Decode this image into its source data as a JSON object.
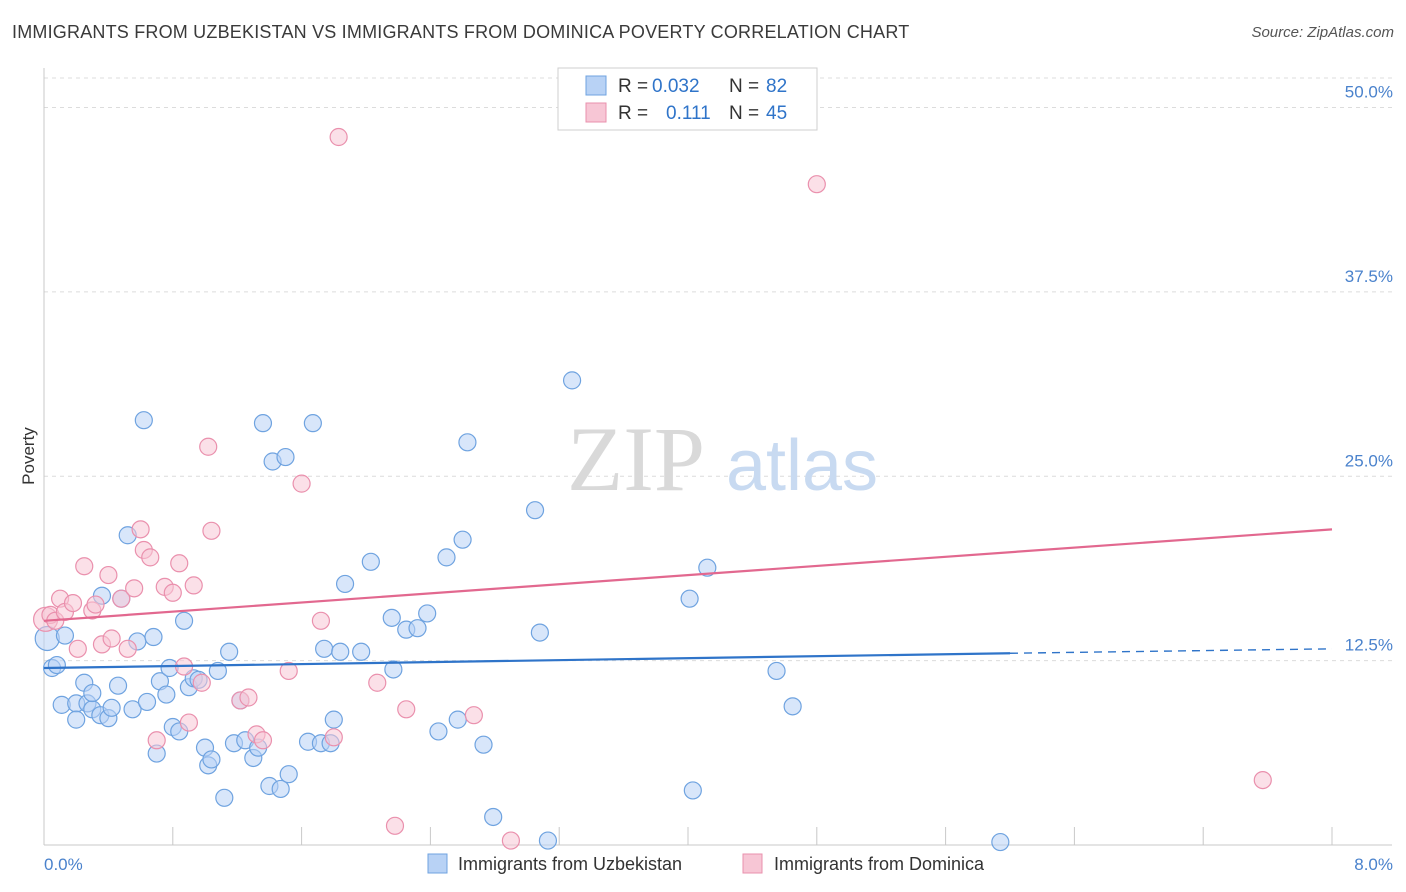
{
  "header": {
    "title": "IMMIGRANTS FROM UZBEKISTAN VS IMMIGRANTS FROM DOMINICA POVERTY CORRELATION CHART",
    "source": "Source: ZipAtlas.com"
  },
  "watermark": {
    "part1": "ZIP",
    "part2": "atlas"
  },
  "colors": {
    "blue": "#6fa3e0",
    "blue_fill": "#b8d2f5",
    "blue_line": "#2f74c9",
    "pink": "#ea90ad",
    "pink_fill": "#f7c6d5",
    "pink_line": "#e2688f",
    "tick_label": "#4a82cc",
    "grid": "#dcdcdc"
  },
  "legend": {
    "rows": [
      {
        "r_label": "R =",
        "r_value": "0.032",
        "n_label": "N =",
        "n_value": "82"
      },
      {
        "r_label": "R =",
        "r_value": "0.111",
        "n_label": "N =",
        "n_value": "45"
      }
    ]
  },
  "chart_data": {
    "type": "scatter",
    "title": "IMMIGRANTS FROM UZBEKISTAN VS IMMIGRANTS FROM DOMINICA POVERTY CORRELATION CHART",
    "xlabel": "",
    "ylabel": "Poverty",
    "xlim": [
      0,
      8
    ],
    "ylim": [
      0,
      52
    ],
    "x_tick_labels": [
      "0.0%",
      "8.0%"
    ],
    "y_tick_values": [
      12.5,
      25.0,
      37.5,
      50.0
    ],
    "y_tick_labels": [
      "12.5%",
      "25.0%",
      "37.5%",
      "50.0%"
    ],
    "grid": true,
    "legend_position": "top-center",
    "series": [
      {
        "name": "Immigrants from Uzbekistan",
        "color": "blue",
        "R": 0.032,
        "N": 82,
        "trend": {
          "x": [
            0.0,
            6.0
          ],
          "y": [
            12.0,
            13.0
          ],
          "dashed_to": [
            8.0,
            13.3
          ]
        },
        "points": [
          [
            0.02,
            14.0
          ],
          [
            0.05,
            12.0
          ],
          [
            0.08,
            12.2
          ],
          [
            0.13,
            14.2
          ],
          [
            0.11,
            9.5
          ],
          [
            0.2,
            9.6
          ],
          [
            0.2,
            8.5
          ],
          [
            0.25,
            11.0
          ],
          [
            0.27,
            9.6
          ],
          [
            0.3,
            9.2
          ],
          [
            0.3,
            10.3
          ],
          [
            0.35,
            8.8
          ],
          [
            0.36,
            16.9
          ],
          [
            0.4,
            8.6
          ],
          [
            0.42,
            9.3
          ],
          [
            0.46,
            10.8
          ],
          [
            0.48,
            16.7
          ],
          [
            0.52,
            21.0
          ],
          [
            0.55,
            9.2
          ],
          [
            0.58,
            13.8
          ],
          [
            0.62,
            28.8
          ],
          [
            0.64,
            9.7
          ],
          [
            0.68,
            14.1
          ],
          [
            0.7,
            6.2
          ],
          [
            0.72,
            11.1
          ],
          [
            0.76,
            10.2
          ],
          [
            0.78,
            12.0
          ],
          [
            0.8,
            8.0
          ],
          [
            0.84,
            7.7
          ],
          [
            0.87,
            15.2
          ],
          [
            0.9,
            10.7
          ],
          [
            0.93,
            11.3
          ],
          [
            0.96,
            11.2
          ],
          [
            1.0,
            6.6
          ],
          [
            1.02,
            5.4
          ],
          [
            1.04,
            5.8
          ],
          [
            1.08,
            11.8
          ],
          [
            1.12,
            3.2
          ],
          [
            1.15,
            13.1
          ],
          [
            1.18,
            6.9
          ],
          [
            1.22,
            9.8
          ],
          [
            1.25,
            7.1
          ],
          [
            1.3,
            5.9
          ],
          [
            1.33,
            6.6
          ],
          [
            1.36,
            28.6
          ],
          [
            1.4,
            4.0
          ],
          [
            1.42,
            26.0
          ],
          [
            1.47,
            3.8
          ],
          [
            1.5,
            26.3
          ],
          [
            1.52,
            4.8
          ],
          [
            1.64,
            7.0
          ],
          [
            1.67,
            28.6
          ],
          [
            1.72,
            6.9
          ],
          [
            1.74,
            13.3
          ],
          [
            1.78,
            6.9
          ],
          [
            1.8,
            8.5
          ],
          [
            1.84,
            13.1
          ],
          [
            1.87,
            17.7
          ],
          [
            1.97,
            13.1
          ],
          [
            2.03,
            19.2
          ],
          [
            2.16,
            15.4
          ],
          [
            2.17,
            11.9
          ],
          [
            2.25,
            14.6
          ],
          [
            2.32,
            14.7
          ],
          [
            2.38,
            15.7
          ],
          [
            2.45,
            7.7
          ],
          [
            2.5,
            19.5
          ],
          [
            2.57,
            8.5
          ],
          [
            2.6,
            20.7
          ],
          [
            2.63,
            27.3
          ],
          [
            2.73,
            6.8
          ],
          [
            2.79,
            1.9
          ],
          [
            3.05,
            22.7
          ],
          [
            3.08,
            14.4
          ],
          [
            3.13,
            0.3
          ],
          [
            3.28,
            31.5
          ],
          [
            4.01,
            16.7
          ],
          [
            4.03,
            3.7
          ],
          [
            4.12,
            18.8
          ],
          [
            4.55,
            11.8
          ],
          [
            4.65,
            9.4
          ],
          [
            5.94,
            0.2
          ]
        ]
      },
      {
        "name": "Immigrants from Dominica",
        "color": "pink",
        "R": 0.111,
        "N": 45,
        "trend": {
          "x": [
            0.0,
            8.0
          ],
          "y": [
            15.2,
            21.4
          ]
        },
        "points": [
          [
            0.01,
            15.3
          ],
          [
            0.04,
            15.6
          ],
          [
            0.07,
            15.2
          ],
          [
            0.1,
            16.7
          ],
          [
            0.13,
            15.8
          ],
          [
            0.18,
            16.4
          ],
          [
            0.21,
            13.3
          ],
          [
            0.25,
            18.9
          ],
          [
            0.3,
            15.9
          ],
          [
            0.32,
            16.3
          ],
          [
            0.36,
            13.6
          ],
          [
            0.4,
            18.3
          ],
          [
            0.42,
            14.0
          ],
          [
            0.48,
            16.7
          ],
          [
            0.52,
            13.3
          ],
          [
            0.56,
            17.4
          ],
          [
            0.6,
            21.4
          ],
          [
            0.62,
            20.0
          ],
          [
            0.66,
            19.5
          ],
          [
            0.7,
            7.1
          ],
          [
            0.75,
            17.5
          ],
          [
            0.8,
            17.1
          ],
          [
            0.84,
            19.1
          ],
          [
            0.87,
            12.1
          ],
          [
            0.9,
            8.3
          ],
          [
            0.93,
            17.6
          ],
          [
            0.98,
            11.0
          ],
          [
            1.02,
            27.0
          ],
          [
            1.04,
            21.3
          ],
          [
            1.22,
            9.8
          ],
          [
            1.27,
            10.0
          ],
          [
            1.32,
            7.5
          ],
          [
            1.36,
            7.1
          ],
          [
            1.52,
            11.8
          ],
          [
            1.6,
            24.5
          ],
          [
            1.72,
            15.2
          ],
          [
            1.8,
            7.3
          ],
          [
            1.83,
            48.0
          ],
          [
            2.07,
            11.0
          ],
          [
            2.18,
            1.3
          ],
          [
            2.25,
            9.2
          ],
          [
            2.67,
            8.8
          ],
          [
            2.9,
            0.3
          ],
          [
            4.8,
            44.8
          ],
          [
            7.57,
            4.4
          ]
        ]
      }
    ]
  },
  "axis_legend": {
    "items": [
      {
        "label": "Immigrants from Uzbekistan",
        "color": "blue"
      },
      {
        "label": "Immigrants from Dominica",
        "color": "pink"
      }
    ]
  }
}
